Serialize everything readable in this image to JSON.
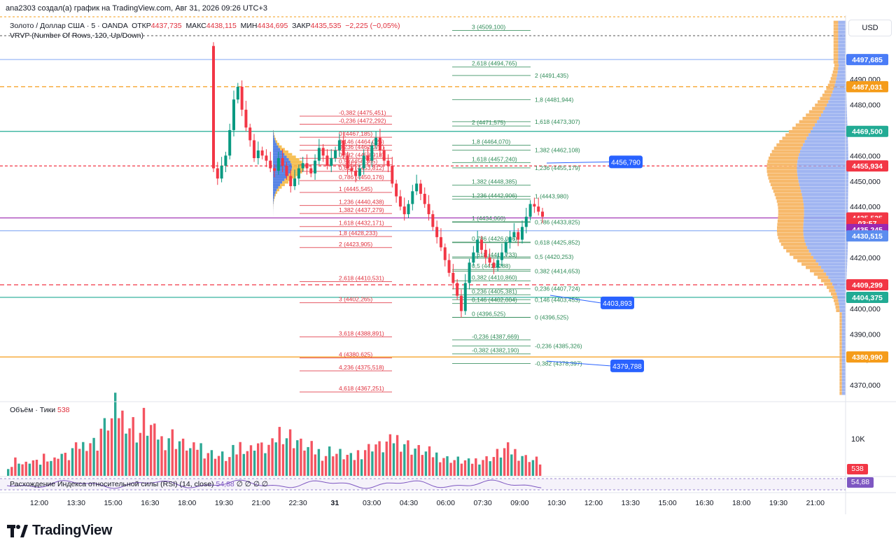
{
  "header": {
    "author_line": "ana2303 создал(а) график на TradingView.com, Авг 31, 2026 09:26 UTC+3",
    "symbol": "Золото / Доллар США · 5 · OANDA",
    "open_label": "ОТКР",
    "open": "4437,735",
    "high_label": "МАКС",
    "high": "4438,115",
    "low_label": "МИН",
    "low": "4434,695",
    "close_label": "ЗАКР",
    "close": "4435,535",
    "change": "−2,225 (−0,05%)",
    "indicator": "VRVP (Number Of Rows, 120, Up/Down)",
    "currency": "USD"
  },
  "volume_pane": {
    "title": "Объём · Тики",
    "value": "538",
    "axis_label": "10K",
    "badge": "538"
  },
  "rsi_pane": {
    "title": "Расхождение Индекса относительной силы (RSI) (14, close)",
    "value": "54,88",
    "extras": "∅ ∅ ∅ ∅",
    "badge": "54,88"
  },
  "logo": {
    "text": "TradingView"
  },
  "colors": {
    "up": "#089981",
    "down": "#f23645",
    "fib_red": "#e0303d",
    "fib_green": "#2e8b57",
    "accent_blue": "#2962ff",
    "vp_orange": "#f7b96b",
    "vp_blue": "#8fa8ef"
  },
  "chart_data": {
    "type": "candlestick",
    "title": "Золото / Доллар США · 5 · OANDA",
    "ylim": [
      4364,
      4515
    ],
    "y_ticks": [
      "4490,000",
      "4480,000",
      "4470,000",
      "4460,000",
      "4450,000",
      "4440,000",
      "4430,000",
      "4420,000",
      "4410,000",
      "4400,000",
      "4390,000",
      "4380,000",
      "4370,000"
    ],
    "x_ticks": [
      "12:00",
      "13:30",
      "15:00",
      "16:30",
      "18:00",
      "19:30",
      "21:00",
      "22:30",
      "31",
      "03:00",
      "04:30",
      "06:00",
      "07:30",
      "09:00",
      "10:30",
      "12:00",
      "13:30",
      "15:00",
      "16:30",
      "18:00",
      "19:30",
      "21:00"
    ],
    "price_badges": [
      {
        "label": "4497,685",
        "value": 4497.685,
        "color": "#4a7cf7"
      },
      {
        "label": "4487,031",
        "value": 4487.031,
        "color": "#f59c1a"
      },
      {
        "label": "4469,500",
        "value": 4469.5,
        "color": "#22ab94"
      },
      {
        "label": "4455,934",
        "value": 4455.934,
        "color": "#f23645"
      },
      {
        "label": "4435,535",
        "value": 4435.535,
        "color": "#f23645"
      },
      {
        "label": "03:57",
        "value": 4433.4,
        "color": "#f23645"
      },
      {
        "label": "4435,245",
        "value": 4431.0,
        "color": "#9c27b0"
      },
      {
        "label": "4430,515",
        "value": 4428.5,
        "color": "#5b8def"
      },
      {
        "label": "4409,299",
        "value": 4409.299,
        "color": "#f23645"
      },
      {
        "label": "4404,375",
        "value": 4404.375,
        "color": "#22ab94"
      },
      {
        "label": "4380,990",
        "value": 4380.99,
        "color": "#f59c1a"
      }
    ],
    "horizontal_lines": [
      {
        "value": 4497.685,
        "color": "#8fb1f5",
        "dash": ""
      },
      {
        "value": 4487.031,
        "color": "#f59c1a",
        "dash": "6,4"
      },
      {
        "value": 4469.5,
        "color": "#22ab94",
        "dash": ""
      },
      {
        "value": 4455.934,
        "color": "#f23645",
        "dash": "4,3"
      },
      {
        "value": 4435.535,
        "color": "#9c27b0",
        "dash": ""
      },
      {
        "value": 4430.515,
        "color": "#8fb1f5",
        "dash": ""
      },
      {
        "value": 4409.299,
        "color": "#f23645",
        "dash": "6,4"
      },
      {
        "value": 4404.375,
        "color": "#22ab94",
        "dash": ""
      },
      {
        "value": 4380.99,
        "color": "#f59c1a",
        "dash": ""
      }
    ],
    "callouts": [
      {
        "label": "4456,790",
        "value": 4457.5
      },
      {
        "label": "4403,893",
        "value": 4402.2
      },
      {
        "label": "4379,788",
        "value": 4377.5
      }
    ],
    "fib_red": [
      [
        "-0,382 (4475,451)",
        4475.451
      ],
      [
        "-0,236 (4472,292)",
        4472.292
      ],
      [
        "0 (4467,185)",
        4467.185
      ],
      [
        "0,146 (4464,026)",
        4464.026
      ],
      [
        "0,236 (4462,077)",
        4462.077
      ],
      [
        "0,382 (4458,918)",
        4458.918
      ],
      [
        "0,5 (4456,365)",
        4456.365
      ],
      [
        "0,618 (4453,812)",
        4453.812
      ],
      [
        "0,786 (4450,176)",
        4450.176
      ],
      [
        "1 (4445,545)",
        4445.545
      ],
      [
        "1,236 (4440,438)",
        4440.438
      ],
      [
        "1,382 (4437,279)",
        4437.279
      ],
      [
        "1,618 (4432,171)",
        4432.171
      ],
      [
        "1,8 (4428,233)",
        4428.233
      ],
      [
        "2 (4423,905)",
        4423.905
      ],
      [
        "2,618 (4410,531)",
        4410.531
      ],
      [
        "3 (4402,265)",
        4402.265
      ],
      [
        "3,618 (4388,891)",
        4388.891
      ],
      [
        "4 (4380,625)",
        4380.625
      ],
      [
        "4,236 (4375,518)",
        4375.518
      ],
      [
        "4,618 (4367,251)",
        4367.251
      ]
    ],
    "fib_green_a": [
      [
        "3 (4509,100)",
        4509.1
      ],
      [
        "2,618 (4494,765)",
        4494.765
      ],
      [
        "2 (4471,575)",
        4471.575
      ],
      [
        "1,8 (4464,070)",
        4464.07
      ],
      [
        "1,618 (4457,240)",
        4457.24
      ],
      [
        "1,382 (4448,385)",
        4448.385
      ],
      [
        "1,236 (4442,906)",
        4442.906
      ],
      [
        "1 (4434,060)",
        4434.06
      ],
      [
        "0,786 (4426,036)",
        4426.036
      ],
      [
        "0,618 (4419,733)",
        4419.733
      ],
      [
        "0,5 (4415,288)",
        4415.288
      ],
      [
        "0,382 (4410,860)",
        4410.86
      ],
      [
        "0,236 (4405,381)",
        4405.381
      ],
      [
        "0,146 (4402,004)",
        4402.004
      ],
      [
        "0 (4396,525)",
        4396.525
      ],
      [
        "-0,236 (4387,669)",
        4387.669
      ],
      [
        "-0,382 (4382,190)",
        4382.19
      ]
    ],
    "fib_green_b": [
      [
        "2 (4491,435)",
        4491.435
      ],
      [
        "1,8 (4481,944)",
        4481.944
      ],
      [
        "1,618 (4473,307)",
        4473.307
      ],
      [
        "1,382 (4462,108)",
        4462.108
      ],
      [
        "1,236 (4455,179)",
        4455.179
      ],
      [
        "1 (4443,980)",
        4443.98
      ],
      [
        "0,786 (4433,825)",
        4433.825
      ],
      [
        "0,618 (4425,852)",
        4425.852
      ],
      [
        "0,5 (4420,253)",
        4420.253
      ],
      [
        "0,382 (4414,653)",
        4414.653
      ],
      [
        "0,236 (4407,724)",
        4407.724
      ],
      [
        "0,146 (4403,453)",
        4403.453
      ],
      [
        "0 (4396,525)",
        4396.525
      ],
      [
        "-0,236 (4385,326)",
        4385.326
      ],
      [
        "-0,382 (4378,397)",
        4378.397
      ]
    ],
    "close_path": [
      4455,
      4451,
      4456,
      4460,
      4470,
      4482,
      4487,
      4478,
      4471,
      4466,
      4459,
      4462,
      4460,
      4458,
      4455,
      4454,
      4459,
      4456,
      4452,
      4448,
      4451,
      4455,
      4457,
      4455,
      4453,
      4458,
      4463,
      4460,
      4456,
      4459,
      4462,
      4466,
      4460,
      4455,
      4454,
      4452,
      4455,
      4460,
      4458,
      4464,
      4467,
      4462,
      4458,
      4456,
      4449,
      4444,
      4440,
      4437,
      4441,
      4446,
      4449,
      4445,
      4441,
      4437,
      4432,
      4428,
      4424,
      4419,
      4414,
      4410,
      4405,
      4399,
      4410,
      4418,
      4422,
      4427,
      4423,
      4420,
      4418,
      4416,
      4419,
      4422,
      4426,
      4428,
      4430,
      4427,
      4432,
      4436,
      4441,
      4440,
      4438,
      4436
    ],
    "volume_path": [
      900,
      1500,
      1100,
      1400,
      1200,
      1900,
      1500,
      2100,
      1800,
      2500,
      2900,
      3300,
      3100,
      4500,
      5200,
      6200,
      5600,
      4800,
      4100,
      5300,
      4600,
      3900,
      3400,
      3800,
      3300,
      2900,
      2500,
      2800,
      2300,
      2100,
      1900,
      1700,
      2300,
      2900,
      2500,
      3100,
      2600,
      2800,
      3600,
      4200,
      3800,
      3400,
      2900,
      2600,
      2300,
      2000,
      2400,
      2100,
      1900,
      1700,
      2200,
      2600,
      3000,
      2700,
      3100,
      3500,
      3200,
      2900,
      2600,
      2400,
      2200,
      2000,
      1800,
      1600,
      1500,
      1400,
      1300,
      1500,
      1600,
      1800,
      2100,
      2500,
      2300,
      2000,
      1700,
      1500,
      1300
    ]
  }
}
